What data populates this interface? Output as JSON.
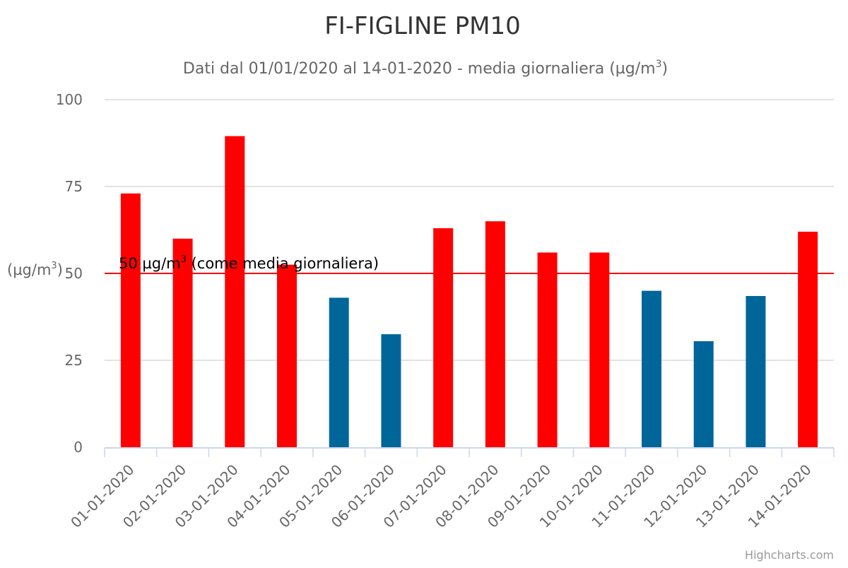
{
  "chart_data": {
    "type": "bar",
    "title": "FI-FIGLINE PM10",
    "subtitle": "Dati dal 01/01/2020 al 14-01-2020 - media giornaliera (µg/m",
    "subtitle_sup": "3",
    "subtitle_end": ")",
    "ylabel": "(µg/m",
    "ylabel_sup": "3",
    "ylabel_end": ")",
    "ylim": [
      0,
      100
    ],
    "yticks": [
      "0",
      "25",
      "50",
      "75",
      "100"
    ],
    "grid": true,
    "categories": [
      "01-01-2020",
      "02-01-2020",
      "03-01-2020",
      "04-01-2020",
      "05-01-2020",
      "06-01-2020",
      "07-01-2020",
      "08-01-2020",
      "09-01-2020",
      "10-01-2020",
      "11-01-2020",
      "12-01-2020",
      "13-01-2020",
      "14-01-2020"
    ],
    "values": [
      73,
      60,
      89.5,
      52.5,
      43,
      32.5,
      63,
      65,
      56,
      56,
      45,
      30.5,
      43.5,
      62
    ],
    "threshold": {
      "value": 50,
      "label": "50 µg/m",
      "label_sup": "3",
      "label_end": " (come media giornaliera)"
    },
    "colors": {
      "above_threshold": "#ff0000",
      "below_threshold": "#006699",
      "threshold_line": "#ff0000"
    }
  },
  "credits": "Highcharts.com"
}
